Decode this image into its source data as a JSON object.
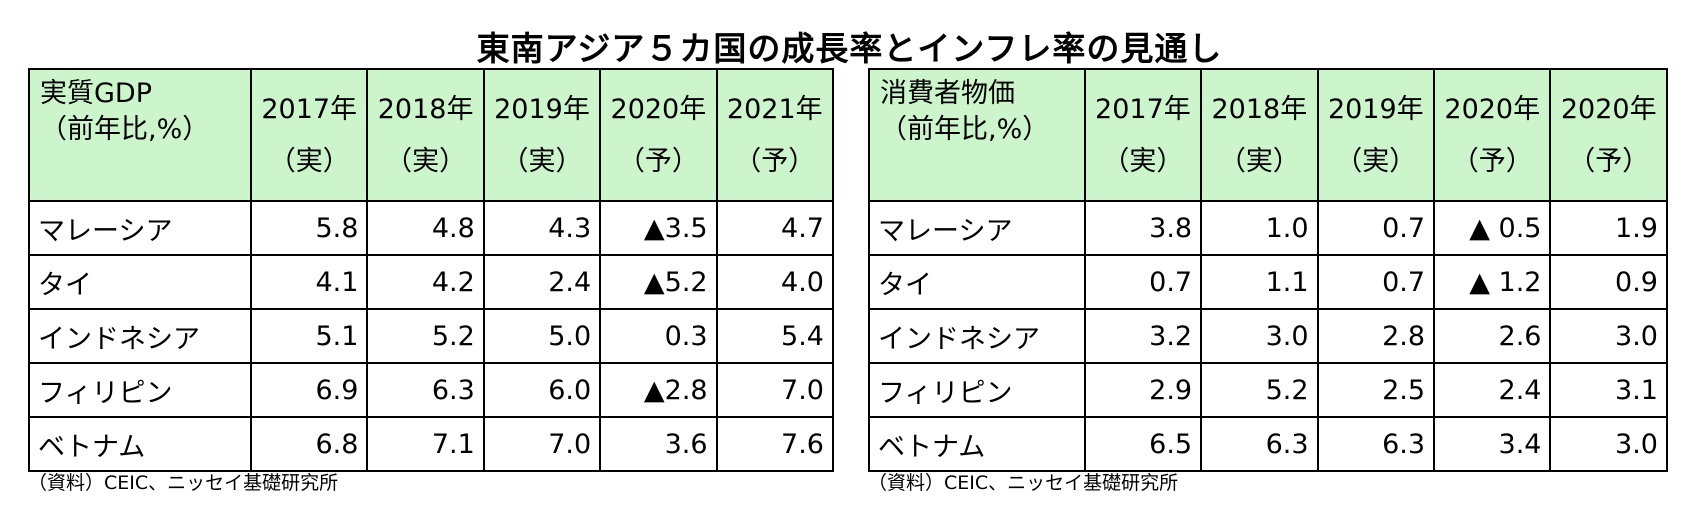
{
  "title": "東南アジア５カ国の成長率とインフレ率の見通し",
  "gdp_table": {
    "label_line1": "実質GDP",
    "label_line2": "（前年比,%）",
    "columns": [
      {
        "year": "2017年",
        "type": "（実）"
      },
      {
        "year": "2018年",
        "type": "（実）"
      },
      {
        "year": "2019年",
        "type": "（実）"
      },
      {
        "year": "2020年",
        "type": "（予）"
      },
      {
        "year": "2021年",
        "type": "（予）"
      }
    ],
    "rows": [
      {
        "country": "マレーシア",
        "values": [
          "5.8",
          "4.8",
          "4.3",
          "▲3.5",
          "4.7"
        ]
      },
      {
        "country": "タイ",
        "values": [
          "4.1",
          "4.2",
          "2.4",
          "▲5.2",
          "4.0"
        ]
      },
      {
        "country": "インドネシア",
        "values": [
          "5.1",
          "5.2",
          "5.0",
          "0.3",
          "5.4"
        ]
      },
      {
        "country": "フィリピン",
        "values": [
          "6.9",
          "6.3",
          "6.0",
          "▲2.8",
          "7.0"
        ]
      },
      {
        "country": "ベトナム",
        "values": [
          "6.8",
          "7.1",
          "7.0",
          "3.6",
          "7.6"
        ]
      }
    ],
    "source": "（資料）CEIC、ニッセイ基礎研究所"
  },
  "cpi_table": {
    "label_line1": "消費者物価",
    "label_line2": "（前年比,%）",
    "columns": [
      {
        "year": "2017年",
        "type": "（実）"
      },
      {
        "year": "2018年",
        "type": "（実）"
      },
      {
        "year": "2019年",
        "type": "（実）"
      },
      {
        "year": "2020年",
        "type": "（予）"
      },
      {
        "year": "2020年",
        "type": "（予）"
      }
    ],
    "rows": [
      {
        "country": "マレーシア",
        "values": [
          "3.8",
          "1.0",
          "0.7",
          "▲ 0.5",
          "1.9"
        ]
      },
      {
        "country": "タイ",
        "values": [
          "0.7",
          "1.1",
          "0.7",
          "▲ 1.2",
          "0.9"
        ]
      },
      {
        "country": "インドネシア",
        "values": [
          "3.2",
          "3.0",
          "2.8",
          "2.6",
          "3.0"
        ]
      },
      {
        "country": "フィリピン",
        "values": [
          "2.9",
          "5.2",
          "2.5",
          "2.4",
          "3.1"
        ]
      },
      {
        "country": "ベトナム",
        "values": [
          "6.5",
          "6.3",
          "6.3",
          "3.4",
          "3.0"
        ]
      }
    ],
    "source": "（資料）CEIC、ニッセイ基礎研究所"
  },
  "colors": {
    "header_bg": "#ccf5cc",
    "border": "#000000"
  }
}
